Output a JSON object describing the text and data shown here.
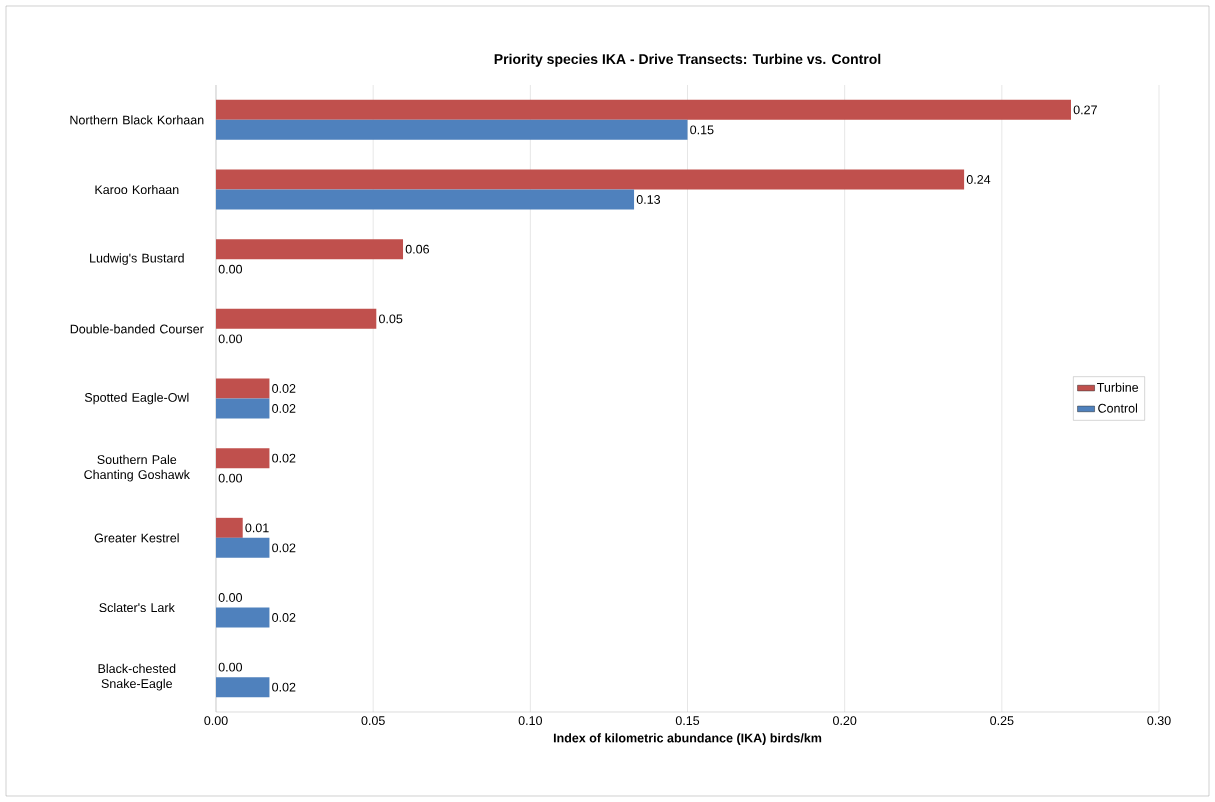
{
  "chart_data": {
    "type": "bar",
    "orientation": "horizontal",
    "title": "Priority species IKA - Drive Transects: Turbine vs. Control",
    "xlabel": "Index of kilometric abundance (IKA) birds/km",
    "categories": [
      "Northern Black Korhaan",
      "Karoo Korhaan",
      "Ludwig's Bustard",
      "Double-banded Courser",
      "Spotted Eagle-Owl",
      "Southern Pale Chanting Goshawk",
      "Greater Kestrel",
      "Sclater's Lark",
      "Black-chested Snake-Eagle"
    ],
    "series": [
      {
        "name": "Turbine",
        "color": "#c0504d",
        "values": [
          0.272,
          0.238,
          0.0595,
          0.051,
          0.017,
          0.017,
          0.0085,
          0,
          0
        ],
        "value_labels": [
          "0.27",
          "0.24",
          "0.06",
          "0.05",
          "0.02",
          "0.02",
          "0.01",
          "0.00",
          "0.00"
        ]
      },
      {
        "name": "Control",
        "color": "#4f81bd",
        "values": [
          0.15,
          0.133,
          0,
          0,
          0.017,
          0,
          0.017,
          0.017,
          0.017
        ],
        "value_labels": [
          "0.15",
          "0.13",
          "0.00",
          "0.00",
          "0.02",
          "0.00",
          "0.02",
          "0.02",
          "0.02"
        ]
      }
    ],
    "xlim": [
      0,
      0.3
    ],
    "xticks": [
      {
        "value": 0,
        "label": "0.00"
      },
      {
        "value": 0.05,
        "label": "0.05"
      },
      {
        "value": 0.1,
        "label": "0.10"
      },
      {
        "value": 0.15,
        "label": "0.15"
      },
      {
        "value": 0.2,
        "label": "0.20"
      },
      {
        "value": 0.25,
        "label": "0.25"
      },
      {
        "value": 0.3,
        "label": "0.30"
      }
    ],
    "grid": "x",
    "legend": "right"
  }
}
